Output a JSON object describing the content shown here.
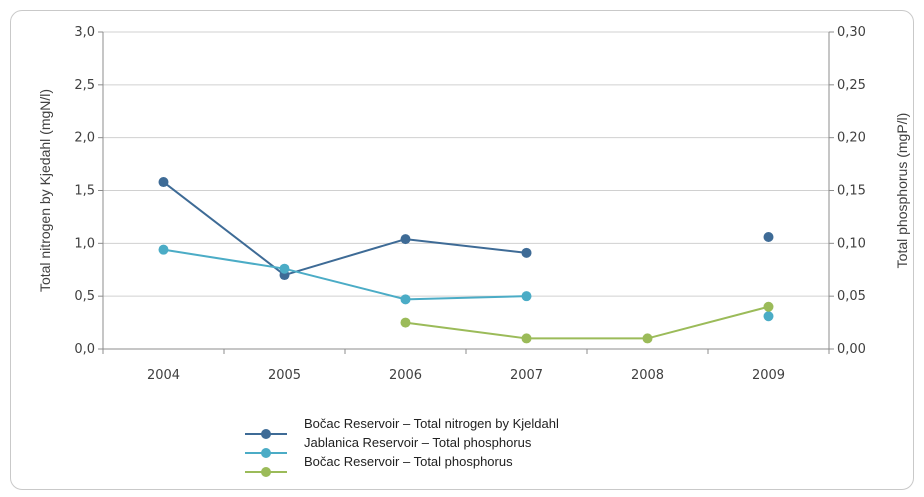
{
  "chart_data": {
    "type": "line",
    "categories": [
      "2004",
      "2005",
      "2006",
      "2007",
      "2008",
      "2009"
    ],
    "ylabel_left": "Total nitrogen by Kjedahl (mgN/l)",
    "ylabel_right": "Total phosphorus (mgP/l)",
    "ylim_left": [
      0,
      3
    ],
    "ylim_right": [
      0,
      0.3
    ],
    "yticks_left": [
      "0,0",
      "0,5",
      "1,0",
      "1,5",
      "2,0",
      "2,5",
      "3,0"
    ],
    "yticks_right": [
      "0,00",
      "0,05",
      "0,10",
      "0,15",
      "0,20",
      "0,25",
      "0,30"
    ],
    "grid": true,
    "legend_position": "bottom",
    "series": [
      {
        "name": "Bočac Reservoir – Total nitrogen by Kjeldahl",
        "axis": "left",
        "color": "#3e6b96",
        "values": [
          1.58,
          0.7,
          1.04,
          0.91,
          null,
          1.06
        ]
      },
      {
        "name": "Jablanica Reservoir – Total phosphorus",
        "axis": "right",
        "color": "#4bacc6",
        "values": [
          0.094,
          0.076,
          0.047,
          0.05,
          null,
          0.031
        ]
      },
      {
        "name": "Bočac Reservoir – Total phosphorus",
        "axis": "right",
        "color": "#9bbb59",
        "values": [
          null,
          null,
          0.025,
          0.01,
          0.01,
          0.04
        ]
      }
    ]
  }
}
